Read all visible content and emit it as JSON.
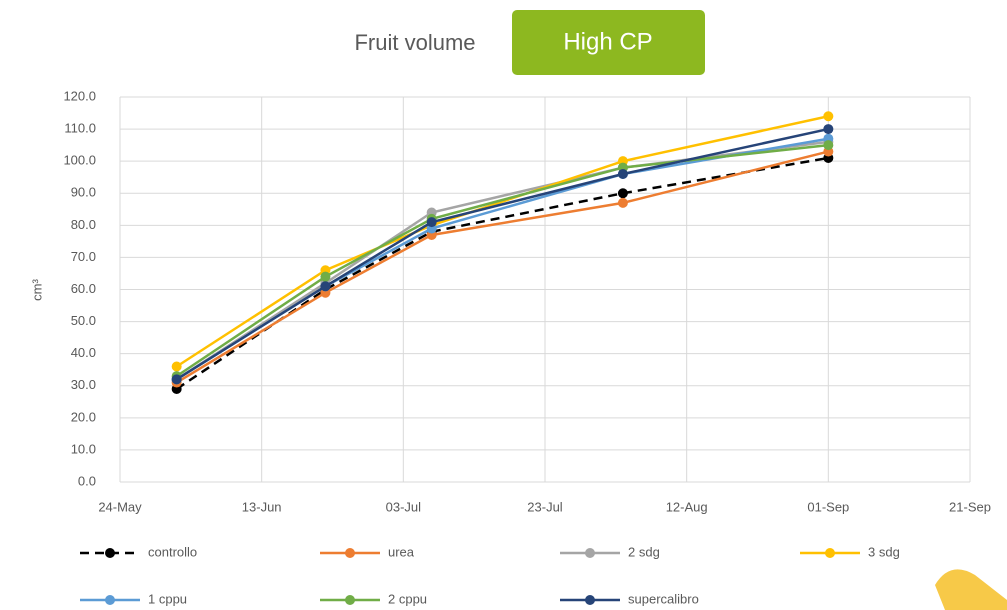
{
  "chart_data": {
    "type": "line",
    "title": "Fruit volume",
    "badge": "High CP",
    "badge_color": "#8db820",
    "y_label": "cm³",
    "x": [
      "01-Jun",
      "22-Jun",
      "07-Jul",
      "03-Aug",
      "01-Sep"
    ],
    "xlim": [
      "24-May",
      "21-Sep"
    ],
    "xticks": [
      "24-May",
      "13-Jun",
      "03-Jul",
      "23-Jul",
      "12-Aug",
      "01-Sep",
      "21-Sep"
    ],
    "ylim": [
      0,
      120
    ],
    "yticks": [
      {
        "value": 0,
        "label": "0.0"
      },
      {
        "value": 10,
        "label": "10.0"
      },
      {
        "value": 20,
        "label": "20.0"
      },
      {
        "value": 30,
        "label": "30.0"
      },
      {
        "value": 40,
        "label": "40.0"
      },
      {
        "value": 50,
        "label": "50.0"
      },
      {
        "value": 60,
        "label": "60.0"
      },
      {
        "value": 70,
        "label": "70.0"
      },
      {
        "value": 80,
        "label": "80.0"
      },
      {
        "value": 90,
        "label": "90.0"
      },
      {
        "value": 100,
        "label": "100.0"
      },
      {
        "value": 110,
        "label": "110.0"
      },
      {
        "value": 120,
        "label": "120.0"
      }
    ],
    "grid": true,
    "legend": "bottom",
    "series": [
      {
        "name": "controllo",
        "color": "#000000",
        "linestyle": "dashed",
        "values": [
          29,
          60,
          78,
          90,
          101
        ]
      },
      {
        "name": "urea",
        "color": "#ed7d31",
        "values": [
          31,
          59,
          77,
          87,
          103
        ]
      },
      {
        "name": "2 sdg",
        "color": "#a5a5a5",
        "values": [
          32,
          62,
          84,
          98,
          106
        ]
      },
      {
        "name": "3 sdg",
        "color": "#ffc000",
        "values": [
          36,
          66,
          80,
          100,
          114
        ]
      },
      {
        "name": "1 cppu",
        "color": "#5b9bd5",
        "values": [
          32,
          61,
          79,
          96,
          107
        ]
      },
      {
        "name": "2 cppu",
        "color": "#70ad47",
        "values": [
          33,
          64,
          82,
          98,
          105
        ]
      },
      {
        "name": "supercalibro",
        "color": "#264478",
        "values": [
          32,
          61,
          81,
          96,
          110
        ]
      }
    ]
  }
}
